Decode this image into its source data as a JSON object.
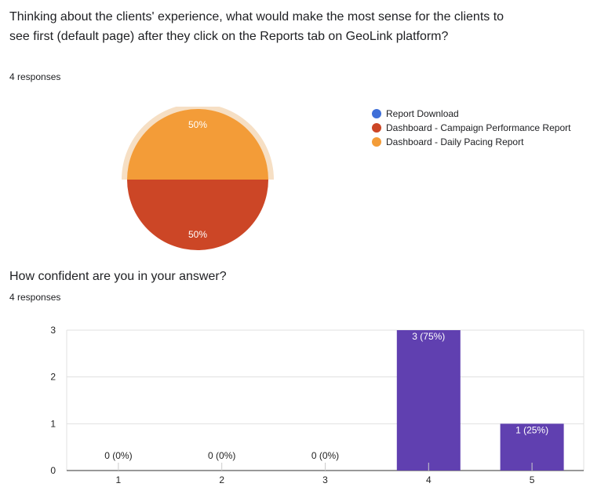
{
  "question1": {
    "title": "Thinking about the clients' experience, what would make the most sense for the clients to see first (default page) after they click on the Reports tab on GeoLink platform?",
    "responses": "4 responses"
  },
  "question2": {
    "title": "How confident are you in your answer?",
    "responses": "4 responses"
  },
  "colors": {
    "blue": "#3f6fd8",
    "red": "#cc4626",
    "orange": "#f39c38",
    "purple": "#6040b0",
    "highlight": "#f6dfc4"
  },
  "chart_data": [
    {
      "type": "pie",
      "labels": [
        "Report Download",
        "Dashboard - Campaign Performance Report",
        "Dashboard - Daily Pacing Report"
      ],
      "values": [
        0,
        2,
        2
      ],
      "percent_labels": [
        "0%",
        "50%",
        "50%"
      ],
      "colors": [
        "#3f6fd8",
        "#cc4626",
        "#f39c38"
      ],
      "highlighted_slice": "Dashboard - Daily Pacing Report",
      "legend_position": "right"
    },
    {
      "type": "bar",
      "categories": [
        "1",
        "2",
        "3",
        "4",
        "5"
      ],
      "values": [
        0,
        0,
        0,
        3,
        1
      ],
      "data_labels": [
        "0 (0%)",
        "0 (0%)",
        "0 (0%)",
        "3 (75%)",
        "1 (25%)"
      ],
      "ylim": [
        0,
        3
      ],
      "yticks": [
        "0",
        "1",
        "2",
        "3"
      ],
      "color": "#6040b0",
      "grid": true
    }
  ]
}
